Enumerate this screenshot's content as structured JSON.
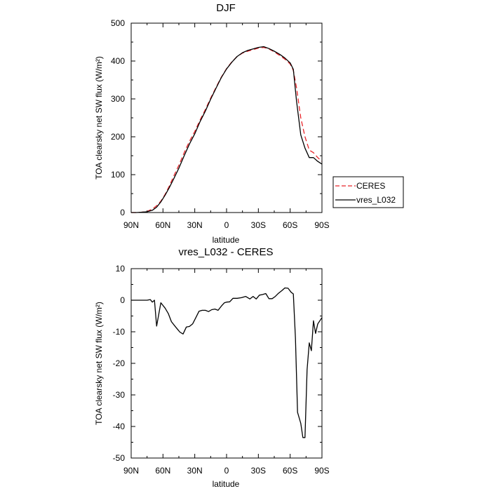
{
  "chart_data": [
    {
      "type": "line",
      "title": "DJF",
      "xlabel": "latitude",
      "ylabel": "TOA clearsky net SW flux (W/m²)",
      "x_ticks": [
        90,
        60,
        30,
        0,
        -30,
        -60,
        -90
      ],
      "x_tick_labels": [
        "90N",
        "60N",
        "30N",
        "0",
        "30S",
        "60S",
        "90S"
      ],
      "xlim": [
        90,
        -90
      ],
      "y_ticks": [
        0,
        100,
        200,
        300,
        400,
        500
      ],
      "y_tick_labels": [
        "0",
        "100",
        "200",
        "300",
        "400",
        "500"
      ],
      "ylim": [
        0,
        500
      ],
      "legend_position": "right, outside the plot",
      "series": [
        {
          "name": "CERES",
          "color": "#e8262b",
          "dash": "dashed",
          "x": [
            90,
            85,
            80,
            75,
            70,
            66,
            62,
            58,
            54,
            50,
            45,
            40,
            35,
            30,
            25,
            20,
            15,
            10,
            5,
            0,
            -5,
            -10,
            -15,
            -20,
            -25,
            -30,
            -35,
            -40,
            -45,
            -50,
            -55,
            -60,
            -63,
            -66,
            -70,
            -74,
            -78,
            -82,
            -86,
            -90
          ],
          "y": [
            0,
            0,
            1,
            3,
            9,
            18,
            30,
            48,
            70,
            95,
            125,
            158,
            188,
            214,
            244,
            272,
            302,
            330,
            357,
            380,
            398,
            412,
            421,
            426,
            430,
            434,
            436,
            432,
            424,
            415,
            405,
            392,
            375,
            330,
            250,
            200,
            165,
            158,
            145,
            135
          ]
        },
        {
          "name": "vres_L032",
          "color": "#000000",
          "dash": "solid",
          "x": [
            90,
            85,
            80,
            75,
            70,
            66,
            62,
            58,
            54,
            50,
            45,
            40,
            35,
            30,
            25,
            20,
            15,
            10,
            5,
            0,
            -5,
            -10,
            -15,
            -20,
            -25,
            -30,
            -35,
            -40,
            -45,
            -50,
            -55,
            -60,
            -63,
            -66,
            -70,
            -74,
            -78,
            -82,
            -86,
            -90
          ],
          "y": [
            0,
            0,
            1,
            2,
            6,
            14,
            28,
            46,
            66,
            88,
            117,
            150,
            181,
            208,
            240,
            268,
            299,
            328,
            356,
            379,
            397,
            412,
            422,
            428,
            432,
            436,
            438,
            433,
            426,
            418,
            408,
            395,
            378,
            295,
            205,
            170,
            145,
            145,
            135,
            128
          ]
        }
      ]
    },
    {
      "type": "line",
      "title": "vres_L032 - CERES",
      "xlabel": "latitude",
      "ylabel": "TOA clearsky net SW flux (W/m²)",
      "x_ticks": [
        90,
        60,
        30,
        0,
        -30,
        -60,
        -90
      ],
      "x_tick_labels": [
        "90N",
        "60N",
        "30N",
        "0",
        "30S",
        "60S",
        "90S"
      ],
      "xlim": [
        90,
        -90
      ],
      "y_ticks": [
        -50,
        -40,
        -30,
        -20,
        -10,
        0,
        10
      ],
      "y_tick_labels": [
        "-50",
        "-40",
        "-30",
        "-20",
        "-10",
        "0",
        "10"
      ],
      "ylim": [
        -50,
        10
      ],
      "series": [
        {
          "color": "#000000",
          "dash": "solid",
          "x": [
            90,
            85,
            80,
            75,
            72,
            70,
            68,
            66,
            62,
            58,
            55,
            52,
            48,
            44,
            41,
            38,
            35,
            32,
            29,
            26,
            23,
            20,
            17,
            14,
            11,
            8,
            5,
            2,
            0,
            -3,
            -6,
            -10,
            -14,
            -18,
            -22,
            -25,
            -28,
            -31,
            -34,
            -37,
            -40,
            -43,
            -46,
            -49,
            -52,
            -55,
            -58,
            -61,
            -63,
            -65,
            -67,
            -70,
            -72,
            -74,
            -76,
            -78,
            -80,
            -82,
            -84,
            -86,
            -88,
            -90
          ],
          "y": [
            0,
            0,
            0,
            0,
            0.2,
            -0.6,
            0,
            -8.2,
            -0.8,
            -2.5,
            -4.2,
            -6.8,
            -8.5,
            -10.1,
            -10.7,
            -8.5,
            -8.3,
            -7.5,
            -5.5,
            -3.5,
            -3.2,
            -3.2,
            -3.6,
            -3.0,
            -2.8,
            -3.2,
            -1.9,
            -0.8,
            -0.6,
            -0.5,
            0.6,
            0.6,
            0.8,
            1.2,
            0.4,
            1.2,
            0.4,
            1.6,
            1.8,
            2.1,
            0.5,
            0.5,
            1.2,
            2.2,
            3.0,
            3.9,
            3.8,
            2.5,
            2.0,
            -12,
            -35.5,
            -39,
            -43.5,
            -43.5,
            -22,
            -13.5,
            -16,
            -6.5,
            -10.5,
            -7.5,
            -6.5,
            -5.5
          ]
        }
      ]
    }
  ]
}
